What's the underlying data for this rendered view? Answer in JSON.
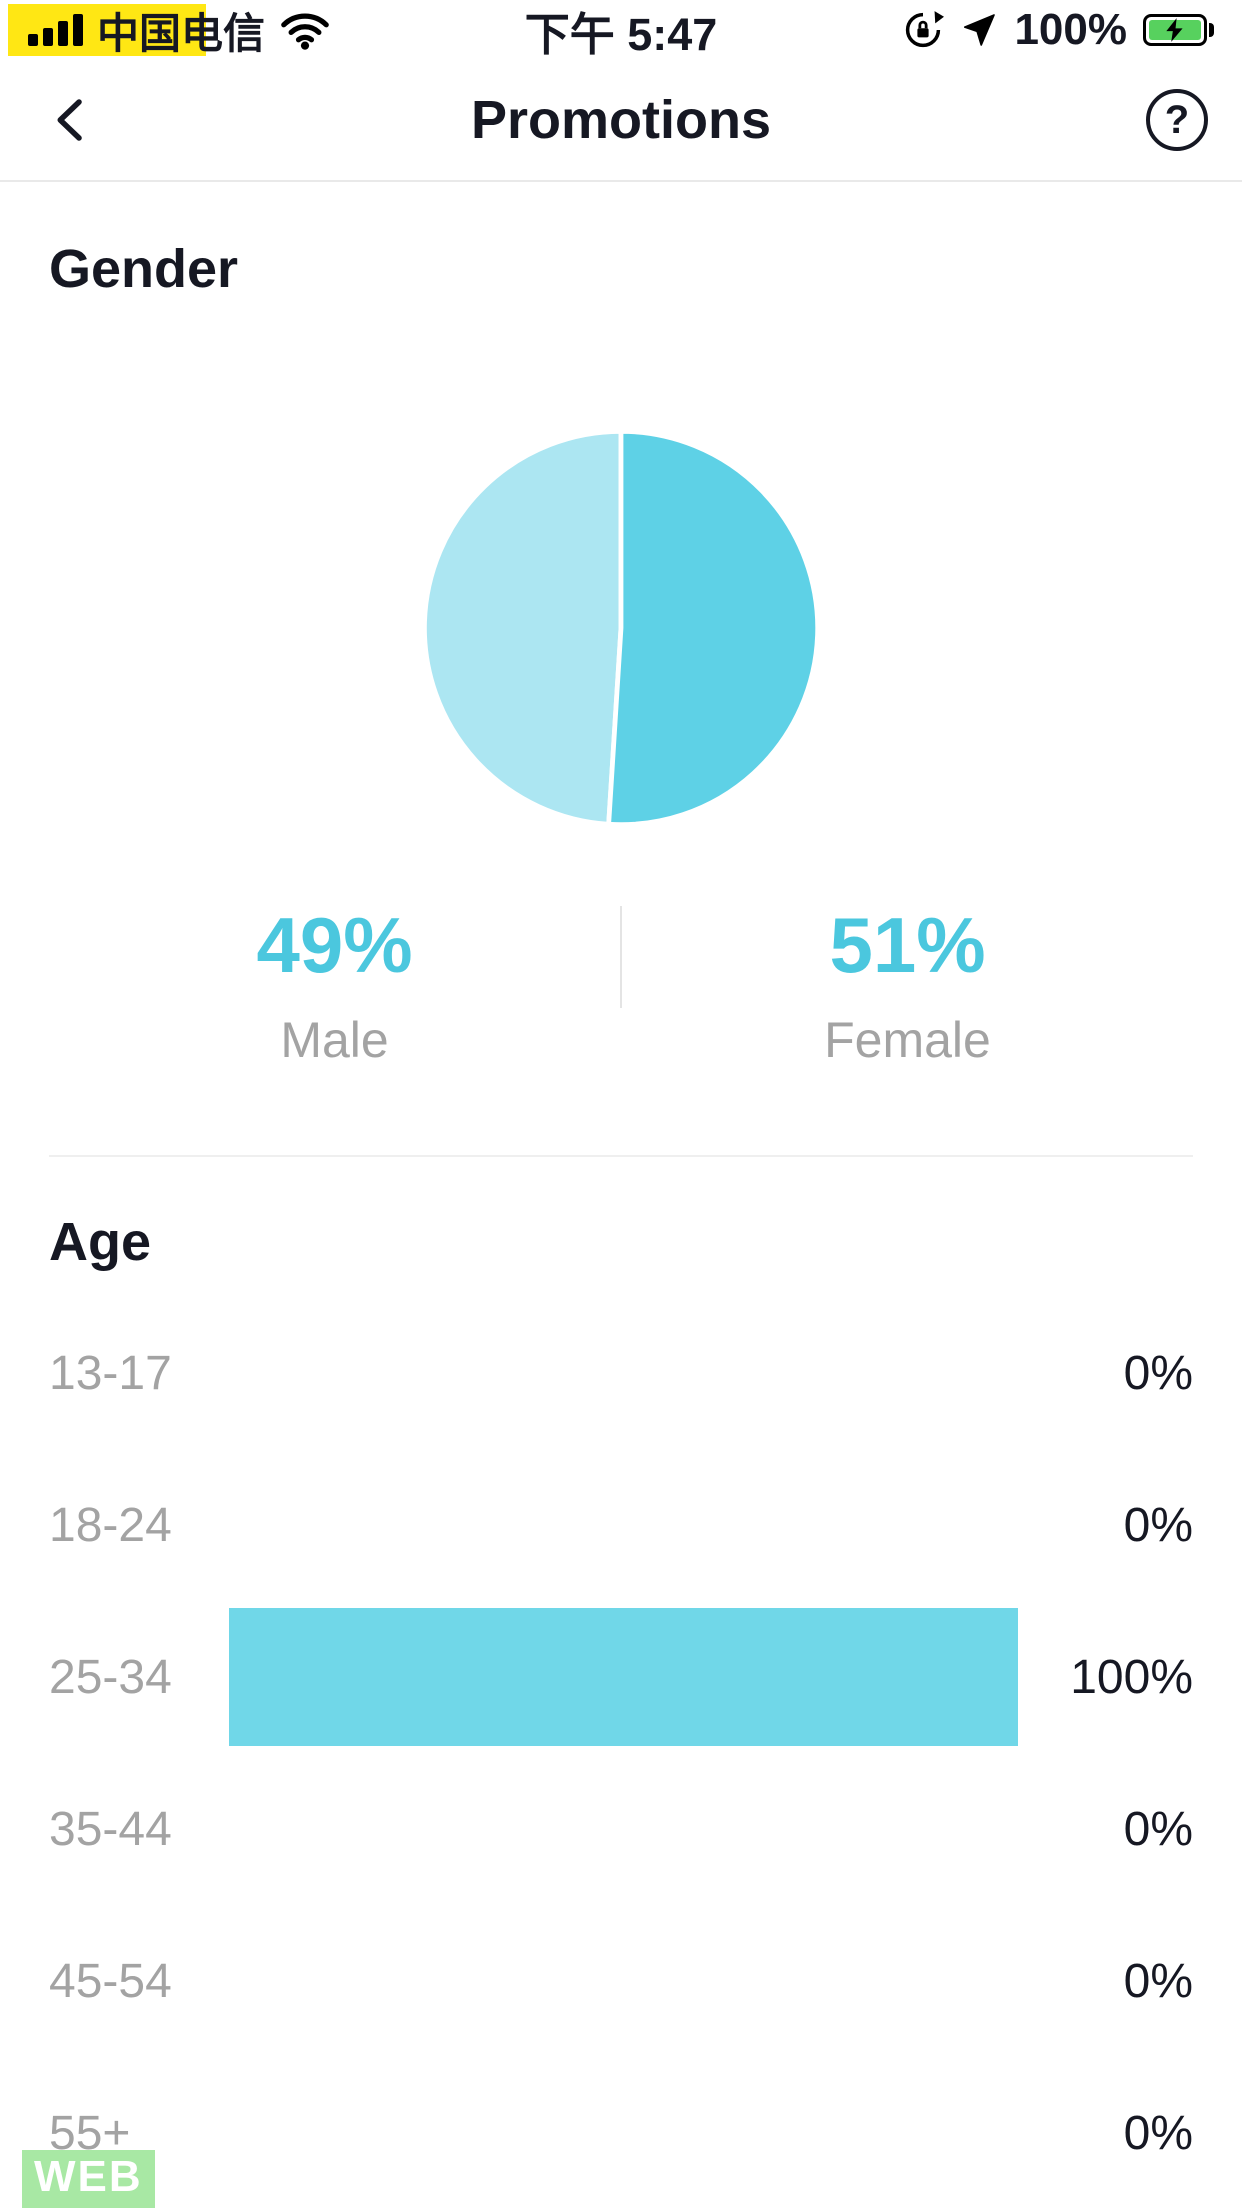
{
  "status_bar": {
    "carrier": "中国电信",
    "time": "下午 5:47",
    "battery_percent": "100%"
  },
  "header": {
    "title": "Promotions",
    "help_glyph": "?"
  },
  "gender_section": {
    "title": "Gender"
  },
  "age_section": {
    "title": "Age"
  },
  "chart_data": [
    {
      "type": "pie",
      "title": "Gender",
      "categories": [
        "Male",
        "Female"
      ],
      "values": [
        49,
        51
      ],
      "labels": [
        "49%",
        "51%"
      ],
      "colors": [
        "#ACE6F2",
        "#5ED1E6"
      ],
      "start_angle": 183.6,
      "legend_position": "below"
    },
    {
      "type": "bar",
      "title": "Age",
      "orientation": "horizontal",
      "categories": [
        "13-17",
        "18-24",
        "25-34",
        "35-44",
        "45-54",
        "55+"
      ],
      "values": [
        0,
        0,
        100,
        0,
        0,
        0
      ],
      "labels": [
        "0%",
        "0%",
        "100%",
        "0%",
        "0%",
        "0%"
      ],
      "bar_color": "#70D7E8",
      "xlim": [
        0,
        100
      ]
    }
  ],
  "watermark": "WEB",
  "colors": {
    "accent_cyan": "#4BC7DE",
    "male_slice": "#ACE6F2",
    "female_slice": "#5ED1E6",
    "bar": "#70D7E8",
    "highlight_yellow": "#FFE714",
    "watermark_green": "#8FE28B"
  }
}
